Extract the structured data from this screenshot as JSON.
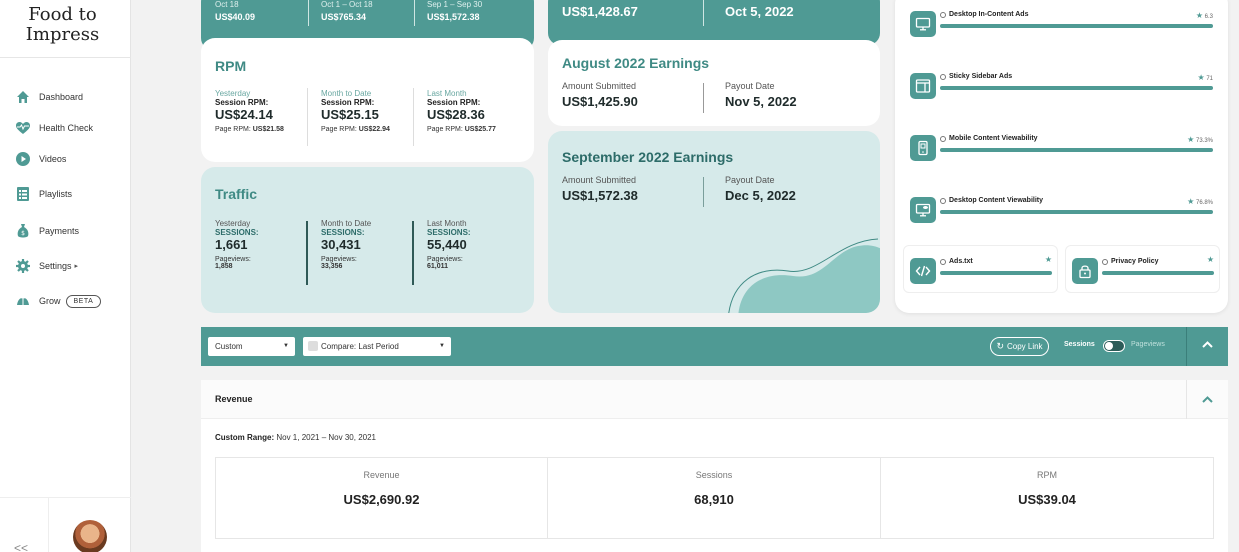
{
  "sidebar": {
    "logo_line1": "Food to",
    "logo_line2": "Impress",
    "items": [
      {
        "label": "Dashboard"
      },
      {
        "label": "Health Check"
      },
      {
        "label": "Videos"
      },
      {
        "label": "Playlists"
      },
      {
        "label": "Payments"
      },
      {
        "label": "Settings"
      },
      {
        "label": "Grow"
      }
    ],
    "settings_arrow": "▸",
    "beta_badge": "BETA",
    "collapse_label": "<<"
  },
  "top_strip": {
    "cols": [
      {
        "period": "Oct 18",
        "value": "US$40.09"
      },
      {
        "period": "Oct 1 – Oct 18",
        "value": "US$765.34"
      },
      {
        "period": "Sep 1 – Sep 30",
        "value": "US$1,572.38"
      }
    ]
  },
  "rpm": {
    "title": "RPM",
    "cols": [
      {
        "period": "Yesterday",
        "session_label": "Session RPM:",
        "session_value": "US$24.14",
        "page_label": "Page RPM:",
        "page_value": "US$21.58"
      },
      {
        "period": "Month to Date",
        "session_label": "Session RPM:",
        "session_value": "US$25.15",
        "page_label": "Page RPM:",
        "page_value": "US$22.94"
      },
      {
        "period": "Last Month",
        "session_label": "Session RPM:",
        "session_value": "US$28.36",
        "page_label": "Page RPM:",
        "page_value": "US$25.77"
      }
    ]
  },
  "traffic": {
    "title": "Traffic",
    "cols": [
      {
        "period": "Yesterday",
        "sessions_label": "SESSIONS:",
        "sessions_value": "1,661",
        "pv_label": "Pageviews:",
        "pv_value": "1,858"
      },
      {
        "period": "Month to Date",
        "sessions_label": "SESSIONS:",
        "sessions_value": "30,431",
        "pv_label": "Pageviews:",
        "pv_value": "33,356"
      },
      {
        "period": "Last Month",
        "sessions_label": "SESSIONS:",
        "sessions_value": "55,440",
        "pv_label": "Pageviews:",
        "pv_value": "61,011"
      }
    ]
  },
  "earnings": {
    "top": {
      "amount": "US$1,428.67",
      "date": "Oct 5, 2022"
    },
    "august": {
      "title": "August 2022 Earnings",
      "amount_label": "Amount Submitted",
      "amount": "US$1,425.90",
      "date_label": "Payout Date",
      "date": "Nov 5, 2022"
    },
    "september": {
      "title": "September 2022 Earnings",
      "amount_label": "Amount Submitted",
      "amount": "US$1,572.38",
      "date_label": "Payout Date",
      "date": "Dec 5, 2022"
    }
  },
  "checklist": {
    "items": [
      {
        "name": "Desktop In-Content Ads",
        "score": "6.3",
        "icon": "monitor-icon"
      },
      {
        "name": "Sticky Sidebar Ads",
        "score": "71",
        "icon": "sidebar-layout-icon"
      },
      {
        "name": "Mobile Content Viewability",
        "score": "73.3%",
        "icon": "mobile-icon"
      },
      {
        "name": "Desktop Content Viewability",
        "score": "76.8%",
        "icon": "monitor-eye-icon"
      }
    ],
    "small": [
      {
        "name": "Ads.txt",
        "icon": "code-icon"
      },
      {
        "name": "Privacy Policy",
        "icon": "lock-icon"
      }
    ]
  },
  "toolbar": {
    "range_select": "Custom",
    "compare_select": "Compare: Last Period",
    "copy_link": "Copy Link",
    "toggle_left": "Sessions",
    "toggle_right": "Pageviews"
  },
  "revenue": {
    "title": "Revenue",
    "range_label": "Custom Range:",
    "range_value": "Nov 1, 2021 – Nov 30, 2021",
    "metrics": [
      {
        "label": "Revenue",
        "value": "US$2,690.92"
      },
      {
        "label": "Sessions",
        "value": "68,910"
      },
      {
        "label": "RPM",
        "value": "US$39.04"
      }
    ]
  }
}
